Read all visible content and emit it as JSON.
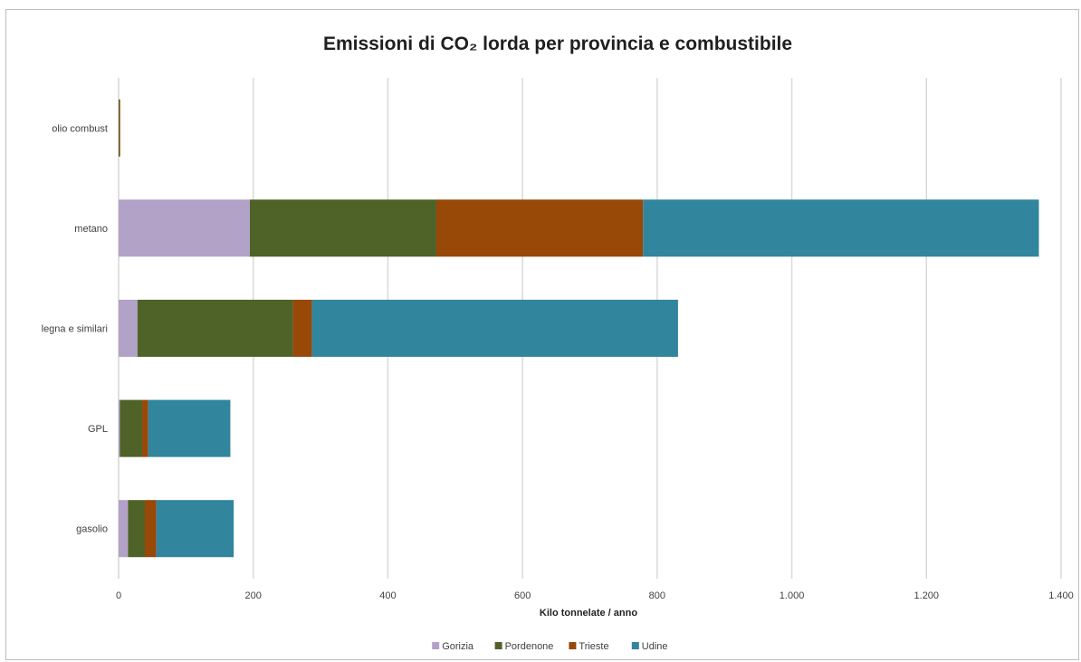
{
  "chart_data": {
    "type": "bar",
    "orientation": "horizontal",
    "stacked": true,
    "title": "Emissioni di CO₂ lorda per provincia e combustibile",
    "xlabel": "Kilo tonnelate / anno",
    "ylabel": "",
    "xlim": [
      0,
      1400
    ],
    "xticks": [
      0,
      200,
      400,
      600,
      800,
      1000,
      1200,
      1400
    ],
    "xtick_labels": [
      "0",
      "200",
      "400",
      "600",
      "800",
      "1.000",
      "1.200",
      "1.400"
    ],
    "grid": "vertical",
    "legend_position": "bottom",
    "categories": [
      "olio combust",
      "metano",
      "legna e similari",
      "GPL",
      "gasolio"
    ],
    "series": [
      {
        "name": "Gorizia",
        "color": "#b3a2c7",
        "values": [
          0,
          195,
          28,
          2,
          14
        ]
      },
      {
        "name": "Pordenone",
        "color": "#4f6228",
        "values": [
          1,
          277,
          231,
          33,
          25
        ]
      },
      {
        "name": "Trieste",
        "color": "#984807",
        "values": [
          1,
          307,
          28,
          9,
          17
        ]
      },
      {
        "name": "Udine",
        "color": "#31859c",
        "values": [
          0,
          588,
          544,
          122,
          115
        ]
      }
    ]
  }
}
